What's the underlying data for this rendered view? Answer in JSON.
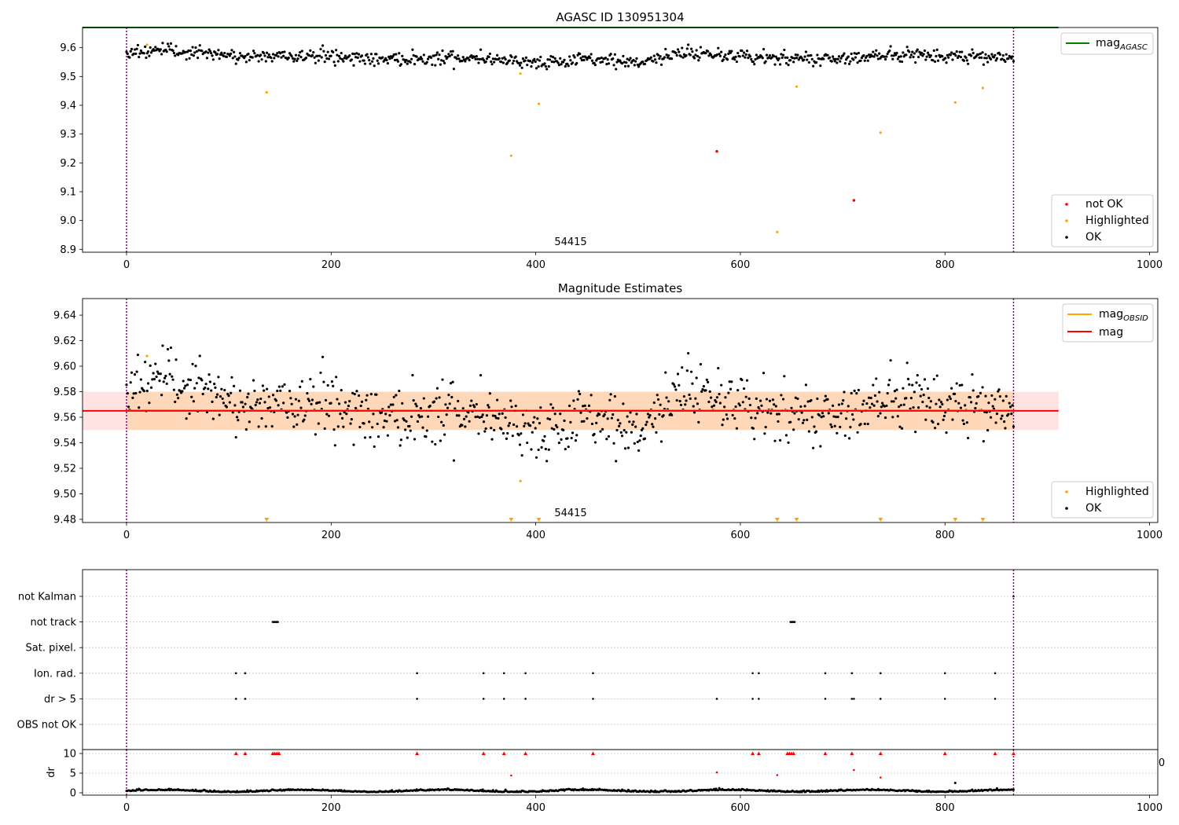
{
  "chart_data": [
    {
      "type": "scatter",
      "title": "AGASC ID 130951304",
      "xlim": [
        -43,
        1008
      ],
      "ylim": [
        8.89,
        9.67
      ],
      "xticks": [
        "0",
        "200",
        "400",
        "600",
        "800",
        "1000"
      ],
      "yticks": [
        "8.9",
        "9.0",
        "9.1",
        "9.2",
        "9.3",
        "9.4",
        "9.5",
        "9.6"
      ],
      "annotation": "54415",
      "legend_line": {
        "label": "mag",
        "subscript": "AGASC",
        "color": "#008000"
      },
      "legend_points": [
        {
          "label": "not OK",
          "color": "#ff0000"
        },
        {
          "label": "Highlighted",
          "color": "#ffa500"
        },
        {
          "label": "OK",
          "color": "#000000"
        }
      ],
      "agasc_mag": 9.67,
      "vlines_x": [
        0,
        867
      ],
      "series": [
        {
          "name": "not OK",
          "color": "#ff0000",
          "points": [
            [
              577,
              9.24
            ],
            [
              711,
              9.07
            ]
          ]
        },
        {
          "name": "Highlighted",
          "color": "#ffa500",
          "points": [
            [
              20,
              9.61
            ],
            [
              137,
              9.445
            ],
            [
              376,
              9.225
            ],
            [
              385,
              9.51
            ],
            [
              403,
              9.405
            ],
            [
              636,
              8.96
            ],
            [
              655,
              9.465
            ],
            [
              737,
              9.305
            ],
            [
              810,
              9.41
            ],
            [
              837,
              9.46
            ]
          ]
        },
        {
          "name": "OK",
          "color": "#000000",
          "n": 860,
          "x_range": [
            0,
            867
          ],
          "profile": [
            [
              0,
              9.585
            ],
            [
              30,
              9.59
            ],
            [
              60,
              9.585
            ],
            [
              100,
              9.57
            ],
            [
              150,
              9.57
            ],
            [
              200,
              9.572
            ],
            [
              250,
              9.56
            ],
            [
              300,
              9.565
            ],
            [
              350,
              9.565
            ],
            [
              420,
              9.545
            ],
            [
              450,
              9.56
            ],
            [
              500,
              9.55
            ],
            [
              550,
              9.585
            ],
            [
              600,
              9.57
            ],
            [
              650,
              9.56
            ],
            [
              700,
              9.565
            ],
            [
              750,
              9.575
            ],
            [
              800,
              9.57
            ],
            [
              840,
              9.57
            ],
            [
              867,
              9.57
            ]
          ]
        }
      ]
    },
    {
      "type": "scatter",
      "title": "Magnitude Estimates",
      "xlim": [
        -43,
        1008
      ],
      "ylim": [
        9.4775,
        9.653
      ],
      "xticks": [
        "0",
        "200",
        "400",
        "600",
        "800",
        "1000"
      ],
      "yticks": [
        "9.48",
        "9.50",
        "9.52",
        "9.54",
        "9.56",
        "9.58",
        "9.60",
        "9.62",
        "9.64"
      ],
      "annotation": "54415",
      "legend_lines": [
        {
          "label": "mag",
          "subscript": "OBSID",
          "color": "#ffa500"
        },
        {
          "label": "mag",
          "color": "#ff0000"
        }
      ],
      "legend_points": [
        {
          "label": "Highlighted",
          "color": "#ffa500"
        },
        {
          "label": "OK",
          "color": "#000000"
        }
      ],
      "mag": 9.565,
      "mag_band": [
        9.55,
        9.58
      ],
      "band_x_range": [
        -43,
        911
      ],
      "obsid_mag": 9.5655,
      "obsid_band": [
        9.55,
        9.58
      ],
      "obsid_x_range": [
        0,
        867
      ],
      "vlines_x": [
        0,
        867
      ],
      "series": [
        {
          "name": "Highlighted",
          "color": "#ffa500",
          "points": [
            [
              20,
              9.608
            ],
            [
              385,
              9.51
            ]
          ]
        },
        {
          "name": "Highlighted (below range)",
          "color": "#ffa500",
          "marker": "triangle-down",
          "x": [
            137,
            376,
            403,
            636,
            655,
            737,
            810,
            837
          ]
        },
        {
          "name": "OK",
          "color": "#000000",
          "n": 860,
          "x_range": [
            0,
            867
          ],
          "profile": [
            [
              0,
              9.585
            ],
            [
              30,
              9.59
            ],
            [
              60,
              9.585
            ],
            [
              100,
              9.57
            ],
            [
              150,
              9.57
            ],
            [
              200,
              9.572
            ],
            [
              250,
              9.56
            ],
            [
              300,
              9.565
            ],
            [
              350,
              9.565
            ],
            [
              420,
              9.545
            ],
            [
              450,
              9.56
            ],
            [
              500,
              9.55
            ],
            [
              550,
              9.585
            ],
            [
              600,
              9.57
            ],
            [
              650,
              9.56
            ],
            [
              700,
              9.565
            ],
            [
              750,
              9.575
            ],
            [
              800,
              9.57
            ],
            [
              840,
              9.57
            ],
            [
              867,
              9.57
            ]
          ]
        }
      ]
    },
    {
      "type": "scatter",
      "title": "",
      "xlim": [
        -43,
        1008
      ],
      "categories": [
        "not Kalman",
        "not track",
        "Sat. pixel.",
        "Ion. rad.",
        "dr > 5",
        "OBS not OK"
      ],
      "flags": {
        "not Kalman": [
          867
        ],
        "not track": [
          143,
          144,
          145,
          146,
          147,
          148,
          649,
          650,
          651,
          652,
          653
        ],
        "Sat. pixel.": [],
        "Ion. rad.": [
          107,
          116,
          284,
          349,
          369,
          390,
          456,
          612,
          618,
          683,
          709,
          737,
          800,
          849
        ],
        "dr > 5": [
          107,
          116,
          284,
          349,
          369,
          390,
          456,
          577,
          612,
          618,
          683,
          709,
          711,
          737,
          800,
          849
        ],
        "OBS not OK": []
      }
    },
    {
      "type": "scatter",
      "xlim": [
        -43,
        1008
      ],
      "ylim": [
        -0.6,
        11
      ],
      "ylabel": "dr",
      "xticks": [
        "0",
        "200",
        "400",
        "600",
        "800",
        "1000"
      ],
      "yticks": [
        "0",
        "5",
        "10"
      ],
      "edge_label": "0",
      "clip_value": 10,
      "clipped_x": [
        107,
        116,
        143,
        145,
        147,
        149,
        284,
        349,
        369,
        390,
        456,
        612,
        618,
        646,
        648,
        650,
        652,
        683,
        709,
        737,
        800,
        849,
        867
      ],
      "outliers": [
        [
          376,
          4.4
        ],
        [
          577,
          5.2
        ],
        [
          636,
          4.5
        ],
        [
          711,
          5.8
        ],
        [
          737,
          3.9
        ]
      ],
      "special_points": [
        [
          810,
          2.5
        ]
      ],
      "baseline": {
        "n": 860,
        "x_range": [
          0,
          867
        ],
        "level": 0.4,
        "spread": 0.5
      }
    }
  ]
}
